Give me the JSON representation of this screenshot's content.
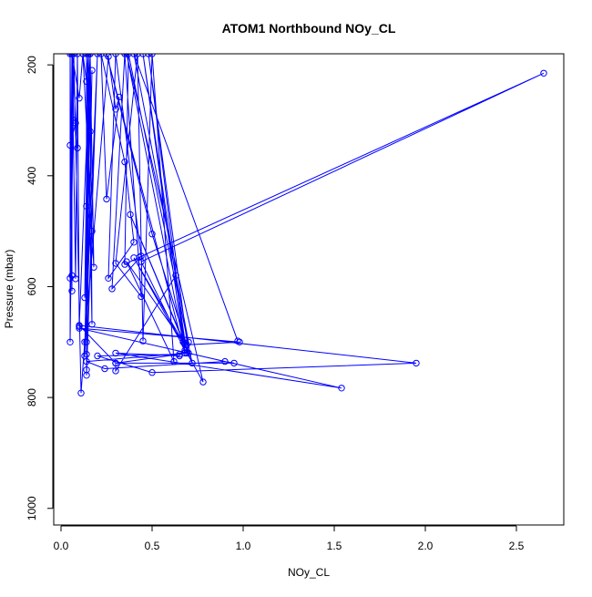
{
  "chart_data": {
    "type": "line",
    "title": "ATOM1 Northbound NOy_CL",
    "xlabel": "NOy_CL",
    "ylabel": "Pressure (mbar)",
    "xlim": [
      -0.04,
      2.76
    ],
    "ylim": [
      180,
      1030
    ],
    "y_reversed": true,
    "x_ticks": [
      "0.0",
      "0.5",
      "1.0",
      "1.5",
      "2.0",
      "2.5"
    ],
    "y_ticks": [
      "200",
      "400",
      "600",
      "800",
      "1000"
    ],
    "grid": false,
    "legend": "none",
    "series_color": "#0000ff",
    "marker": "open-circle",
    "series": [
      {
        "points": [
          [
            0.06,
            180
          ],
          [
            0.07,
            300
          ],
          [
            0.05,
            345
          ],
          [
            0.08,
            305
          ],
          [
            0.09,
            350
          ],
          [
            0.06,
            180
          ],
          [
            0.1,
            260
          ],
          [
            0.12,
            180
          ],
          [
            0.14,
            230
          ],
          [
            0.15,
            180
          ],
          [
            0.16,
            320
          ],
          [
            0.14,
            455
          ],
          [
            0.17,
            500
          ],
          [
            0.12,
            180
          ],
          [
            0.18,
            565
          ],
          [
            0.16,
            180
          ],
          [
            0.13,
            620
          ],
          [
            0.15,
            180
          ],
          [
            0.14,
            700
          ],
          [
            0.16,
            180
          ],
          [
            0.17,
            668
          ],
          [
            0.14,
            180
          ],
          [
            0.14,
            722
          ],
          [
            0.17,
            210
          ],
          [
            0.14,
            750
          ],
          [
            0.15,
            180
          ],
          [
            0.14,
            760
          ],
          [
            0.2,
            180
          ],
          [
            0.13,
            725
          ],
          [
            0.16,
            180
          ],
          [
            0.1,
            672
          ],
          [
            0.09,
            180
          ],
          [
            0.08,
            586
          ],
          [
            0.06,
            180
          ],
          [
            0.05,
            585
          ],
          [
            0.06,
            180
          ],
          [
            0.06,
            580
          ],
          [
            0.06,
            180
          ],
          [
            0.06,
            608
          ],
          [
            0.05,
            180
          ],
          [
            0.05,
            700
          ],
          [
            0.07,
            180
          ],
          [
            0.11,
            792
          ],
          [
            0.13,
            700
          ],
          [
            0.26,
            185
          ],
          [
            0.3,
            280
          ],
          [
            0.32,
            258
          ],
          [
            0.25,
            442
          ],
          [
            0.22,
            180
          ],
          [
            0.35,
            375
          ],
          [
            0.4,
            520
          ],
          [
            0.26,
            585
          ],
          [
            0.3,
            180
          ],
          [
            0.44,
            545
          ],
          [
            0.28,
            604
          ],
          [
            0.35,
            180
          ],
          [
            0.44,
            618
          ],
          [
            0.3,
            558
          ],
          [
            0.42,
            180
          ],
          [
            0.45,
            698
          ],
          [
            0.5,
            180
          ],
          [
            0.62,
            735
          ],
          [
            0.36,
            555
          ],
          [
            0.68,
            705
          ],
          [
            0.48,
            180
          ],
          [
            0.7,
            720
          ],
          [
            0.38,
            470
          ],
          [
            0.72,
            738
          ],
          [
            0.37,
            180
          ],
          [
            0.35,
            560
          ],
          [
            0.43,
            547
          ],
          [
            2.65,
            215
          ],
          [
            0.44,
            555
          ],
          [
            0.68,
            715
          ],
          [
            0.36,
            180
          ],
          [
            0.78,
            772
          ],
          [
            0.4,
            548
          ],
          [
            0.67,
            700
          ],
          [
            0.45,
            180
          ],
          [
            0.69,
            720
          ],
          [
            0.14,
            735
          ],
          [
            0.24,
            748
          ],
          [
            0.9,
            735
          ],
          [
            0.95,
            738
          ],
          [
            0.3,
            738
          ],
          [
            0.1,
            670
          ],
          [
            1.95,
            738
          ],
          [
            0.5,
            755
          ],
          [
            0.2,
            725
          ],
          [
            0.65,
            722
          ],
          [
            0.3,
            738
          ],
          [
            0.3,
            752
          ],
          [
            0.63,
            580
          ],
          [
            0.68,
            720
          ],
          [
            0.25,
            180
          ],
          [
            0.5,
            505
          ],
          [
            0.69,
            705
          ],
          [
            0.98,
            700
          ],
          [
            0.1,
            675
          ],
          [
            1.54,
            783
          ],
          [
            0.3,
            720
          ],
          [
            0.65,
            725
          ],
          [
            0.7,
            700
          ],
          [
            0.4,
            180
          ],
          [
            0.97,
            698
          ]
        ]
      }
    ]
  }
}
